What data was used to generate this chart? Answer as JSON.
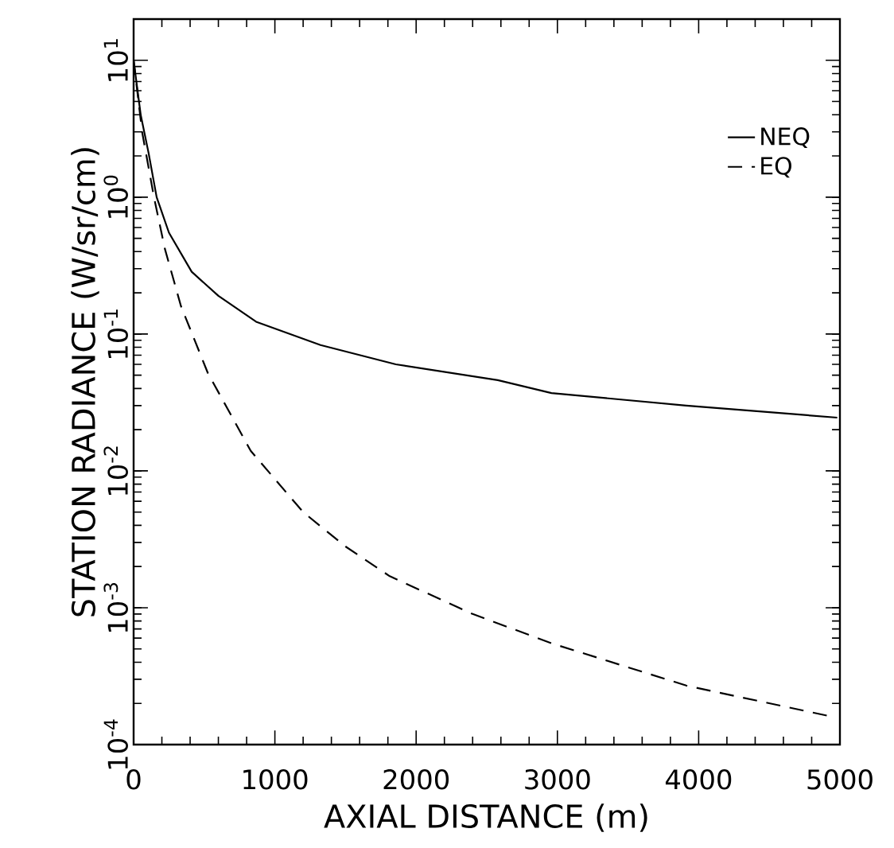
{
  "chart_data": {
    "type": "line",
    "xlabel": "AXIAL DISTANCE (m)",
    "ylabel": "STATION RADIANCE (W/sr/cm)",
    "log": "y",
    "legend": "top right",
    "grid": false,
    "xlim": [
      0,
      5000
    ],
    "xticks": [
      0,
      1000,
      2000,
      3000,
      4000,
      5000
    ],
    "ylim": [
      0.0001,
      20
    ],
    "yticks": [
      {
        "value": 0.0001,
        "label": "10$^{-4}$"
      },
      {
        "value": 0.001,
        "label": "10$^{-3}$"
      },
      {
        "value": 0.01,
        "label": "10$^{-2}$"
      },
      {
        "value": 0.1,
        "label": "10$^{-1}$"
      },
      {
        "value": 1,
        "label": "10$^{0}$"
      },
      {
        "value": 10,
        "label": "10$^{1}$"
      }
    ],
    "series": [
      {
        "name": "NEQ",
        "color": "#000000",
        "line_style": "solid",
        "x": [
          0,
          50,
          106,
          163,
          250,
          411,
          600,
          867,
          1323,
          1856,
          2578,
          2958,
          3912,
          4981
        ],
        "values": [
          10,
          4,
          2.1,
          1.0,
          0.55,
          0.285,
          0.19,
          0.123,
          0.083,
          0.06,
          0.046,
          0.037,
          0.03,
          0.0245
        ]
      },
      {
        "name": "EQ",
        "color": "#000000",
        "line_style": "dashed",
        "x": [
          0,
          60,
          144,
          221,
          335,
          525,
          829,
          1200,
          1500,
          1813,
          2400,
          2958,
          3912,
          4943
        ],
        "values": [
          10,
          3,
          1.0,
          0.42,
          0.16,
          0.052,
          0.014,
          0.005,
          0.0028,
          0.0017,
          0.0009,
          0.00055,
          0.00027,
          0.00016
        ]
      }
    ]
  }
}
